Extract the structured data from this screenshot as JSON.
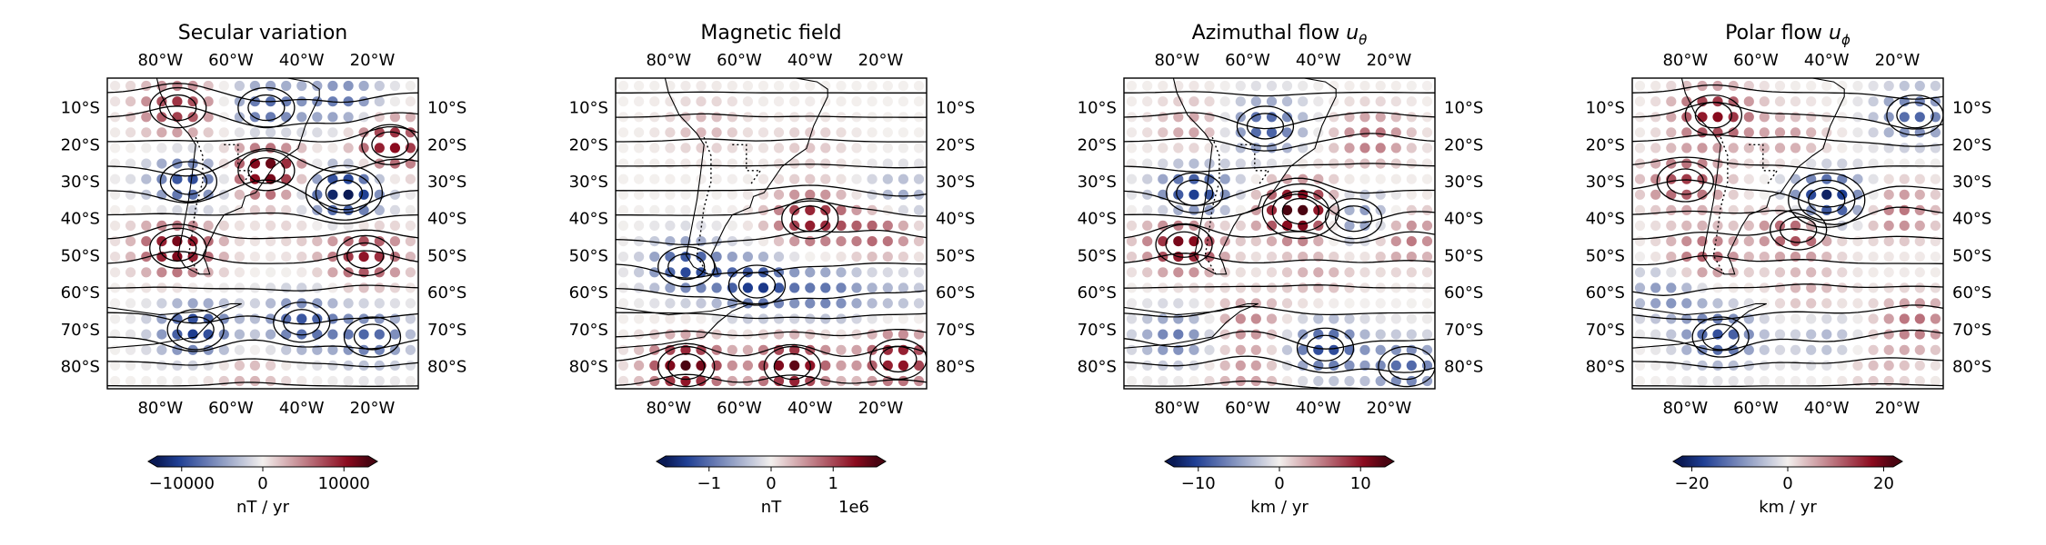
{
  "colors": {
    "neg": "#1f3f94",
    "mid": "#f3f0ee",
    "pos": "#8b0a1e",
    "dark_neg": "#0a1a55",
    "dark_pos": "#4a0411",
    "frame": "#000000"
  },
  "chart_data": [
    {
      "type": "heatmap",
      "title": "Secular variation",
      "title_sub": "",
      "lon_ticks": [
        "80°W",
        "60°W",
        "40°W",
        "20°W"
      ],
      "lat_ticks": [
        "10°S",
        "20°S",
        "30°S",
        "40°S",
        "50°S",
        "60°S",
        "70°S",
        "80°S"
      ],
      "colorbar": {
        "ticks": [
          "−10000",
          "0",
          "10000"
        ],
        "label": "nT / yr",
        "offset": "",
        "range": [
          -13000,
          13000
        ]
      },
      "blobs": [
        {
          "lon": -75,
          "lat": -10,
          "value": 9000
        },
        {
          "lon": -50,
          "lat": -10,
          "value": -8000
        },
        {
          "lon": -28,
          "lat": -8,
          "value": -7000
        },
        {
          "lon": -15,
          "lat": -20,
          "value": 11000
        },
        {
          "lon": -72,
          "lat": -30,
          "value": -10000
        },
        {
          "lon": -50,
          "lat": -27,
          "value": 13000
        },
        {
          "lon": -28,
          "lat": -33,
          "value": -14000
        },
        {
          "lon": -75,
          "lat": -48,
          "value": 12000
        },
        {
          "lon": -22,
          "lat": -50,
          "value": 10000
        },
        {
          "lon": -40,
          "lat": -43,
          "value": 1500
        },
        {
          "lon": -70,
          "lat": -70,
          "value": -11000
        },
        {
          "lon": -40,
          "lat": -68,
          "value": -9000
        },
        {
          "lon": -20,
          "lat": -72,
          "value": -8000
        },
        {
          "lon": -55,
          "lat": -82,
          "value": 3000
        }
      ]
    },
    {
      "type": "heatmap",
      "title": "Magnetic field",
      "title_sub": "",
      "lon_ticks": [
        "80°W",
        "60°W",
        "40°W",
        "20°W"
      ],
      "lat_ticks": [
        "10°S",
        "20°S",
        "30°S",
        "40°S",
        "50°S",
        "60°S",
        "70°S",
        "80°S"
      ],
      "colorbar": {
        "ticks": [
          "−1",
          "0",
          "1"
        ],
        "label": "nT",
        "offset": "1e6",
        "range": [
          -1.7,
          1.7
        ]
      },
      "blobs": [
        {
          "lon": -70,
          "lat": -15,
          "value": 0.35
        },
        {
          "lon": -40,
          "lat": -20,
          "value": 0.25
        },
        {
          "lon": -15,
          "lat": -35,
          "value": -0.7
        },
        {
          "lon": -40,
          "lat": -40,
          "value": 1.3
        },
        {
          "lon": -20,
          "lat": -43,
          "value": 1.0
        },
        {
          "lon": -75,
          "lat": -53,
          "value": -1.3
        },
        {
          "lon": -55,
          "lat": -58,
          "value": -1.4
        },
        {
          "lon": -35,
          "lat": -60,
          "value": -0.9
        },
        {
          "lon": -15,
          "lat": -60,
          "value": -0.4
        },
        {
          "lon": -75,
          "lat": -80,
          "value": 1.7
        },
        {
          "lon": -45,
          "lat": -80,
          "value": 1.6
        },
        {
          "lon": -15,
          "lat": -78,
          "value": 1.4
        }
      ]
    },
    {
      "type": "heatmap",
      "title": "Azimuthal flow ",
      "title_sub": "θ",
      "lon_ticks": [
        "80°W",
        "60°W",
        "40°W",
        "20°W"
      ],
      "lat_ticks": [
        "10°S",
        "20°S",
        "30°S",
        "40°S",
        "50°S",
        "60°S",
        "70°S",
        "80°S"
      ],
      "colorbar": {
        "ticks": [
          "−10",
          "0",
          "10"
        ],
        "label": "km / yr",
        "offset": "",
        "range": [
          -13,
          13
        ]
      },
      "blobs": [
        {
          "lon": -55,
          "lat": -15,
          "value": -9
        },
        {
          "lon": -75,
          "lat": -15,
          "value": 4
        },
        {
          "lon": -25,
          "lat": -18,
          "value": 6
        },
        {
          "lon": -75,
          "lat": -33,
          "value": -11
        },
        {
          "lon": -45,
          "lat": -38,
          "value": 16
        },
        {
          "lon": -30,
          "lat": -40,
          "value": -8
        },
        {
          "lon": -78,
          "lat": -47,
          "value": 12
        },
        {
          "lon": -15,
          "lat": -45,
          "value": 6
        },
        {
          "lon": -40,
          "lat": -55,
          "value": 3
        },
        {
          "lon": -60,
          "lat": -68,
          "value": 5
        },
        {
          "lon": -80,
          "lat": -72,
          "value": -7
        },
        {
          "lon": -38,
          "lat": -75,
          "value": -10
        },
        {
          "lon": -15,
          "lat": -80,
          "value": -8
        },
        {
          "lon": -60,
          "lat": -82,
          "value": 4
        }
      ]
    },
    {
      "type": "heatmap",
      "title": "Polar flow ",
      "title_sub": "ϕ",
      "lon_ticks": [
        "80°W",
        "60°W",
        "40°W",
        "20°W"
      ],
      "lat_ticks": [
        "10°S",
        "20°S",
        "30°S",
        "40°S",
        "50°S",
        "60°S",
        "70°S",
        "80°S"
      ],
      "colorbar": {
        "ticks": [
          "−20",
          "0",
          "20"
        ],
        "label": "km / yr",
        "offset": "",
        "range": [
          -22,
          22
        ]
      },
      "blobs": [
        {
          "lon": -72,
          "lat": -12,
          "value": 18
        },
        {
          "lon": -15,
          "lat": -12,
          "value": -14
        },
        {
          "lon": -50,
          "lat": -18,
          "value": 6
        },
        {
          "lon": -80,
          "lat": -30,
          "value": 14
        },
        {
          "lon": -40,
          "lat": -35,
          "value": -24
        },
        {
          "lon": -48,
          "lat": -43,
          "value": 16
        },
        {
          "lon": -20,
          "lat": -38,
          "value": 10
        },
        {
          "lon": -75,
          "lat": -50,
          "value": 12
        },
        {
          "lon": -85,
          "lat": -60,
          "value": -10
        },
        {
          "lon": -45,
          "lat": -60,
          "value": 5
        },
        {
          "lon": -70,
          "lat": -72,
          "value": -16
        },
        {
          "lon": -40,
          "lat": -72,
          "value": -6
        },
        {
          "lon": -15,
          "lat": -68,
          "value": 10
        },
        {
          "lon": -25,
          "lat": -80,
          "value": 4
        }
      ]
    }
  ]
}
